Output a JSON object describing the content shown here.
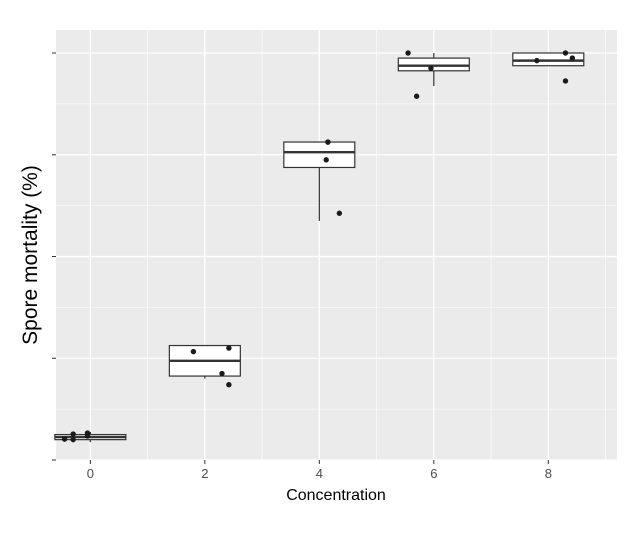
{
  "chart_data": {
    "type": "box",
    "title": "",
    "xlabel": "Concentration",
    "ylabel": "Spore mortality (%)",
    "x_ticks": [
      "0",
      "2",
      "4",
      "6",
      "8"
    ],
    "y_tick_labels_visible": false,
    "grid": true,
    "background": "#ebebeb",
    "categories": [
      "0",
      "2",
      "4",
      "6",
      "8"
    ],
    "boxes": [
      {
        "x": "0",
        "min": 3.5,
        "q1": 4.0,
        "median": 4.5,
        "q3": 5.0,
        "max": 5.5
      },
      {
        "x": "2",
        "min": 16.0,
        "q1": 16.5,
        "median": 19.5,
        "q3": 22.5,
        "max": 22.5
      },
      {
        "x": "4",
        "min": 47.0,
        "q1": 57.5,
        "median": 60.5,
        "q3": 62.5,
        "max": 62.5
      },
      {
        "x": "6",
        "min": 73.5,
        "q1": 76.5,
        "median": 77.5,
        "q3": 79.0,
        "max": 80.0
      },
      {
        "x": "8",
        "min": 77.5,
        "q1": 77.5,
        "median": 78.5,
        "q3": 80.0,
        "max": 80.0
      }
    ],
    "points": [
      {
        "x": "0",
        "y": 5.3
      },
      {
        "x": "0",
        "y": 4.0
      },
      {
        "x": "0",
        "y": 4.1
      },
      {
        "x": "0",
        "y": 4.7
      },
      {
        "x": "0",
        "y": 5.1
      },
      {
        "x": "2",
        "y": 22.0
      },
      {
        "x": "2",
        "y": 21.3
      },
      {
        "x": "2",
        "y": 17.0
      },
      {
        "x": "2",
        "y": 14.8
      },
      {
        "x": "4",
        "y": 62.5
      },
      {
        "x": "4",
        "y": 59.0
      },
      {
        "x": "4",
        "y": 48.5
      },
      {
        "x": "4",
        "y": 62.5
      },
      {
        "x": "6",
        "y": 80.0
      },
      {
        "x": "6",
        "y": 77.0
      },
      {
        "x": "6",
        "y": 71.5
      },
      {
        "x": "8",
        "y": 80.0
      },
      {
        "x": "8",
        "y": 79.0
      },
      {
        "x": "8",
        "y": 78.5
      },
      {
        "x": "8",
        "y": 74.5
      }
    ],
    "colors": {
      "box_fill": "#ffffff",
      "box_stroke": "#333333",
      "points": "#1a1a1a",
      "grid": "#ffffff"
    }
  }
}
